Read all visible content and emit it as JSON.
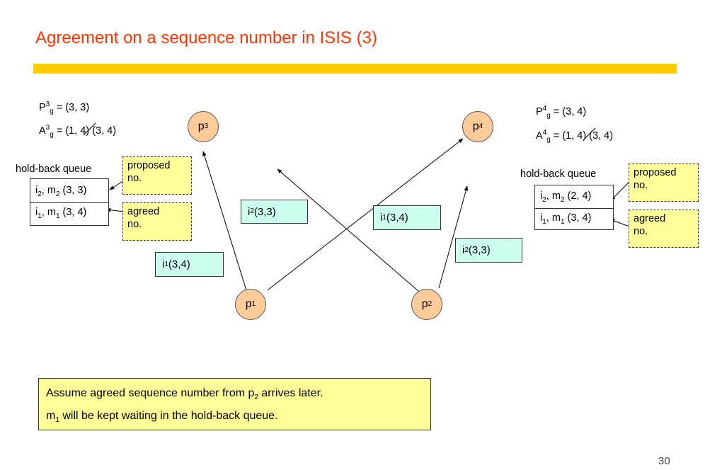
{
  "slide": {
    "title": "Agreement on a sequence number in ISIS (3)",
    "page_number": "30"
  },
  "colors": {
    "title": "#ff3300",
    "bar": "#ffcc00",
    "node": "#ffcc99",
    "note": "#ffff99",
    "message": "#ccffee"
  },
  "left": {
    "P": {
      "base": "P",
      "sup": "3",
      "sub": "g",
      "rest": " = (3, 3)"
    },
    "A": {
      "base": "A",
      "sup": "3",
      "sub": "g",
      "eq": " = ",
      "struck": "(1, 4)",
      "rest": " (3, 4)"
    },
    "queue_label": "hold-back queue",
    "queue": [
      {
        "i": "i",
        "isub": "2",
        "m": ", m",
        "msub": "2",
        "val": " (3, 3)"
      },
      {
        "i": "i",
        "isub": "1",
        "m": ", m",
        "msub": "1",
        "val": " (3, 4)"
      }
    ],
    "proposed_note": [
      "proposed",
      "no."
    ],
    "agreed_note": [
      "agreed",
      "no."
    ]
  },
  "right": {
    "P": {
      "base": "P",
      "sup": "4",
      "sub": "g",
      "rest": " = (3, 4)"
    },
    "A": {
      "base": "A",
      "sup": "4",
      "sub": "g",
      "eq": " = ",
      "struck": "(1, 4)",
      "rest": " (3, 4)"
    },
    "queue_label": "hold-back queue",
    "queue": [
      {
        "i": "i",
        "isub": "2",
        "m": ", m",
        "msub": "2",
        "val": " (2, 4)"
      },
      {
        "i": "i",
        "isub": "1",
        "m": ", m",
        "msub": "1",
        "val": " (3, 4)"
      }
    ],
    "proposed_note": [
      "proposed",
      "no."
    ],
    "agreed_note": [
      "agreed",
      "no."
    ]
  },
  "nodes": {
    "p3": {
      "base": "p",
      "sub": "3"
    },
    "p4": {
      "base": "p",
      "sub": "4"
    },
    "p1": {
      "base": "p",
      "sub": "1"
    },
    "p2": {
      "base": "p",
      "sub": "2"
    }
  },
  "messages": {
    "m_i2_left": {
      "base": "i",
      "sub": "2",
      "val": " (3,3)"
    },
    "m_i1_center": {
      "base": "i",
      "sub": "1",
      "val": " (3,4)"
    },
    "m_i1_left": {
      "base": "i",
      "sub": "1",
      "val": " (3,4)"
    },
    "m_i2_right": {
      "base": "i",
      "sub": "2",
      "val": " (3,3)"
    }
  },
  "footer": {
    "line1_pre": "Assume agreed sequence number from p",
    "line1_sub": "2",
    "line1_post": " arrives later.",
    "line2_pre": "m",
    "line2_sub": "1",
    "line2_post": " will be kept waiting in the hold-back queue."
  }
}
